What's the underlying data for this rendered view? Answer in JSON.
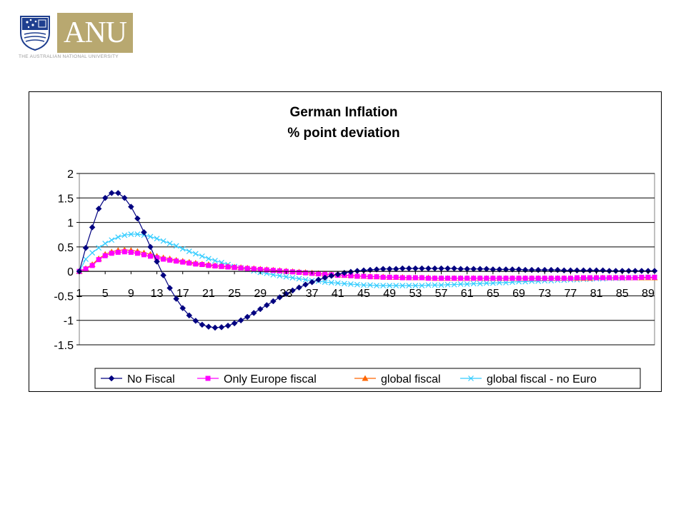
{
  "logo": {
    "text": "ANU",
    "subtitle": "THE AUSTRALIAN NATIONAL UNIVERSITY",
    "colors": {
      "box": "#b8a870",
      "crest_blue": "#1f3f8f"
    }
  },
  "chart_data": {
    "type": "line",
    "title": "German Inflation",
    "subtitle": "% point deviation",
    "xlabel": "",
    "ylabel": "",
    "x_start": 1,
    "x_end": 90,
    "x_tick_labels": [
      "1",
      "5",
      "9",
      "13",
      "17",
      "21",
      "25",
      "29",
      "33",
      "37",
      "41",
      "45",
      "49",
      "53",
      "57",
      "61",
      "65",
      "69",
      "73",
      "77",
      "81",
      "85",
      "89"
    ],
    "y_ticks": [
      2,
      1.5,
      1,
      0.5,
      0,
      -0.5,
      -1,
      -1.5
    ],
    "y_tick_labels": [
      "2",
      "1.5",
      "1",
      "0.5",
      "0",
      "-0.5",
      "-1",
      "-1.5"
    ],
    "ylim": [
      -1.5,
      2
    ],
    "grid": "horizontal",
    "legend_position": "bottom",
    "series": [
      {
        "name": "No Fiscal",
        "color": "#000080",
        "marker": "diamond",
        "values": [
          0,
          0.48,
          0.9,
          1.28,
          1.5,
          1.6,
          1.6,
          1.5,
          1.32,
          1.08,
          0.8,
          0.5,
          0.2,
          -0.08,
          -0.34,
          -0.56,
          -0.75,
          -0.9,
          -1.01,
          -1.09,
          -1.13,
          -1.15,
          -1.14,
          -1.11,
          -1.06,
          -1.0,
          -0.93,
          -0.85,
          -0.77,
          -0.69,
          -0.61,
          -0.53,
          -0.46,
          -0.39,
          -0.33,
          -0.27,
          -0.22,
          -0.17,
          -0.13,
          -0.09,
          -0.06,
          -0.03,
          -0.01,
          0.01,
          0.02,
          0.03,
          0.04,
          0.05,
          0.05,
          0.05,
          0.06,
          0.06,
          0.06,
          0.06,
          0.06,
          0.06,
          0.06,
          0.06,
          0.06,
          0.05,
          0.05,
          0.05,
          0.05,
          0.05,
          0.04,
          0.04,
          0.04,
          0.04,
          0.04,
          0.03,
          0.03,
          0.03,
          0.03,
          0.03,
          0.03,
          0.02,
          0.02,
          0.02,
          0.02,
          0.02,
          0.02,
          0.02,
          0.01,
          0.01,
          0.01,
          0.01,
          0.01,
          0.01,
          0.01,
          0.01
        ]
      },
      {
        "name": "Only Europe fiscal",
        "color": "#ff00ff",
        "marker": "square",
        "values": [
          0,
          0.05,
          0.12,
          0.24,
          0.32,
          0.37,
          0.39,
          0.4,
          0.39,
          0.37,
          0.34,
          0.31,
          0.28,
          0.25,
          0.23,
          0.21,
          0.19,
          0.17,
          0.15,
          0.14,
          0.12,
          0.11,
          0.1,
          0.09,
          0.08,
          0.07,
          0.06,
          0.05,
          0.04,
          0.03,
          0.02,
          0.01,
          0.0,
          -0.01,
          -0.02,
          -0.03,
          -0.04,
          -0.05,
          -0.06,
          -0.07,
          -0.08,
          -0.08,
          -0.09,
          -0.1,
          -0.1,
          -0.11,
          -0.11,
          -0.12,
          -0.12,
          -0.12,
          -0.13,
          -0.13,
          -0.13,
          -0.13,
          -0.14,
          -0.14,
          -0.14,
          -0.14,
          -0.14,
          -0.14,
          -0.14,
          -0.14,
          -0.14,
          -0.14,
          -0.14,
          -0.14,
          -0.14,
          -0.14,
          -0.14,
          -0.14,
          -0.14,
          -0.14,
          -0.14,
          -0.14,
          -0.14,
          -0.14,
          -0.14,
          -0.13,
          -0.13,
          -0.13,
          -0.13,
          -0.13,
          -0.13,
          -0.13,
          -0.13,
          -0.13,
          -0.13,
          -0.12,
          -0.12,
          -0.12
        ]
      },
      {
        "name": "global fiscal",
        "color": "#ff6600",
        "marker": "triangle",
        "values": [
          0,
          0.06,
          0.14,
          0.26,
          0.35,
          0.4,
          0.43,
          0.44,
          0.43,
          0.41,
          0.38,
          0.35,
          0.31,
          0.28,
          0.26,
          0.23,
          0.21,
          0.19,
          0.17,
          0.15,
          0.14,
          0.12,
          0.11,
          0.1,
          0.09,
          0.08,
          0.07,
          0.06,
          0.05,
          0.04,
          0.03,
          0.02,
          0.01,
          0.0,
          -0.01,
          -0.02,
          -0.03,
          -0.04,
          -0.05,
          -0.06,
          -0.07,
          -0.08,
          -0.08,
          -0.09,
          -0.1,
          -0.1,
          -0.11,
          -0.11,
          -0.12,
          -0.12,
          -0.12,
          -0.13,
          -0.13,
          -0.13,
          -0.13,
          -0.14,
          -0.14,
          -0.14,
          -0.14,
          -0.14,
          -0.14,
          -0.14,
          -0.14,
          -0.14,
          -0.14,
          -0.14,
          -0.14,
          -0.14,
          -0.14,
          -0.14,
          -0.14,
          -0.14,
          -0.14,
          -0.14,
          -0.14,
          -0.14,
          -0.14,
          -0.14,
          -0.14,
          -0.14,
          -0.13,
          -0.13,
          -0.13,
          -0.13,
          -0.13,
          -0.13,
          -0.13,
          -0.13,
          -0.13,
          -0.13
        ]
      },
      {
        "name": "global fiscal - no Euro",
        "color": "#33ccff",
        "marker": "x",
        "values": [
          0,
          0.25,
          0.38,
          0.48,
          0.57,
          0.64,
          0.7,
          0.74,
          0.76,
          0.76,
          0.74,
          0.71,
          0.67,
          0.62,
          0.57,
          0.52,
          0.46,
          0.41,
          0.36,
          0.31,
          0.26,
          0.22,
          0.18,
          0.14,
          0.1,
          0.07,
          0.04,
          0.01,
          -0.02,
          -0.04,
          -0.07,
          -0.09,
          -0.11,
          -0.13,
          -0.15,
          -0.17,
          -0.19,
          -0.2,
          -0.22,
          -0.23,
          -0.24,
          -0.25,
          -0.26,
          -0.27,
          -0.28,
          -0.28,
          -0.29,
          -0.29,
          -0.29,
          -0.29,
          -0.29,
          -0.29,
          -0.29,
          -0.29,
          -0.28,
          -0.28,
          -0.28,
          -0.27,
          -0.27,
          -0.26,
          -0.26,
          -0.25,
          -0.25,
          -0.24,
          -0.24,
          -0.23,
          -0.23,
          -0.22,
          -0.21,
          -0.21,
          -0.2,
          -0.2,
          -0.19,
          -0.19,
          -0.18,
          -0.18,
          -0.17,
          -0.17,
          -0.16,
          -0.16,
          -0.15,
          -0.15,
          -0.14,
          -0.14,
          -0.14,
          -0.13,
          -0.13,
          -0.13,
          -0.12,
          -0.12
        ]
      }
    ]
  }
}
